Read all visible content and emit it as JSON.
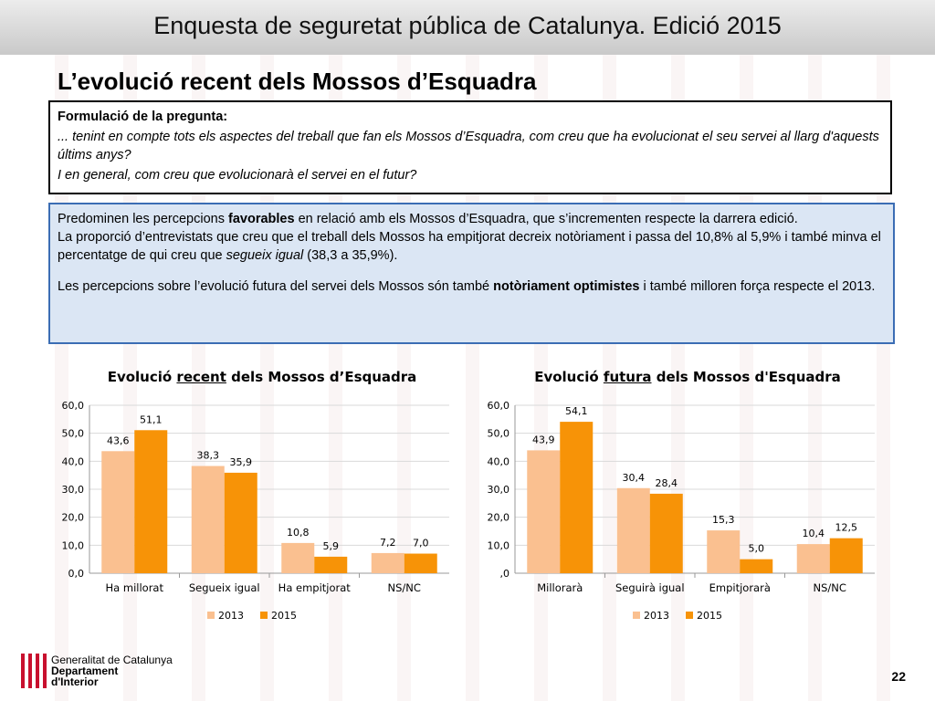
{
  "header": {
    "title": "Enquesta de seguretat pública de Catalunya. Edició 2015"
  },
  "subtitle": "L’evolució recent dels Mossos d’Esquadra",
  "question": {
    "heading": "Formulació de la pregunta:",
    "line1": "... tenint en compte tots els aspectes del treball que fan els Mossos d’Esquadra, com creu que ha evolucionat el seu servei al llarg d'aquests últims anys?",
    "line2": "I en general, com creu que evolucionarà el servei en el futur?"
  },
  "summary": {
    "p1a": "Predominen les percepcions ",
    "p1b": "favorables",
    "p1c": " en relació amb els Mossos d’Esquadra, que s’incrementen respecte la darrera edició.",
    "p2a": "La proporció d’entrevistats que creu que el treball dels Mossos ha empitjorat decreix notòriament i passa del 10,8% al 5,9% i també minva el percentatge de qui creu que ",
    "p2b": "segueix igual",
    "p2c": " (38,3 a 35,9%).",
    "p3a": "Les percepcions sobre l’evolució futura del servei dels Mossos són també ",
    "p3b": "notòriament optimistes",
    "p3c": " i també milloren força respecte el 2013."
  },
  "colors": {
    "s2013": "#fac090",
    "s2015": "#f79307",
    "grid": "#d9d9d9"
  },
  "chart_data": [
    {
      "type": "bar",
      "title_pre": "Evolució ",
      "title_u": "recent",
      "title_post": " dels Mossos d’Esquadra",
      "categories": [
        "Ha millorat",
        "Segueix igual",
        "Ha empitjorat",
        "NS/NC"
      ],
      "series": [
        {
          "name": "2013",
          "values": [
            43.6,
            38.3,
            10.8,
            7.2
          ],
          "labels": [
            "43,6",
            "38,3",
            "10,8",
            "7,2"
          ]
        },
        {
          "name": "2015",
          "values": [
            51.1,
            35.9,
            5.9,
            7.0
          ],
          "labels": [
            "51,1",
            "35,9",
            "5,9",
            "7,0"
          ]
        }
      ],
      "ylim": [
        0,
        60
      ],
      "ytick_labels": [
        "0,0",
        "10,0",
        "20,0",
        "30,0",
        "40,0",
        "50,0",
        "60,0"
      ],
      "grid": true,
      "legend": "bottom"
    },
    {
      "type": "bar",
      "title_pre": "Evolució ",
      "title_u": "futura",
      "title_post": " dels Mossos d'Esquadra",
      "categories": [
        "Millorarà",
        "Seguirà igual",
        "Empitjorarà",
        "NS/NC"
      ],
      "series": [
        {
          "name": "2013",
          "values": [
            43.9,
            30.4,
            15.3,
            10.4
          ],
          "labels": [
            "43,9",
            "30,4",
            "15,3",
            "10,4"
          ]
        },
        {
          "name": "2015",
          "values": [
            54.1,
            28.4,
            5.0,
            12.5
          ],
          "labels": [
            "54,1",
            "28,4",
            "5,0",
            "12,5"
          ]
        }
      ],
      "ylim": [
        0,
        60
      ],
      "ytick_labels": [
        ",0",
        "10,0",
        "20,0",
        "30,0",
        "40,0",
        "50,0",
        "60,0"
      ],
      "grid": true,
      "legend": "bottom"
    }
  ],
  "footer": {
    "org1": "Generalitat de Catalunya",
    "org2": "Departament",
    "org3": "d'Interior",
    "page": "22"
  }
}
